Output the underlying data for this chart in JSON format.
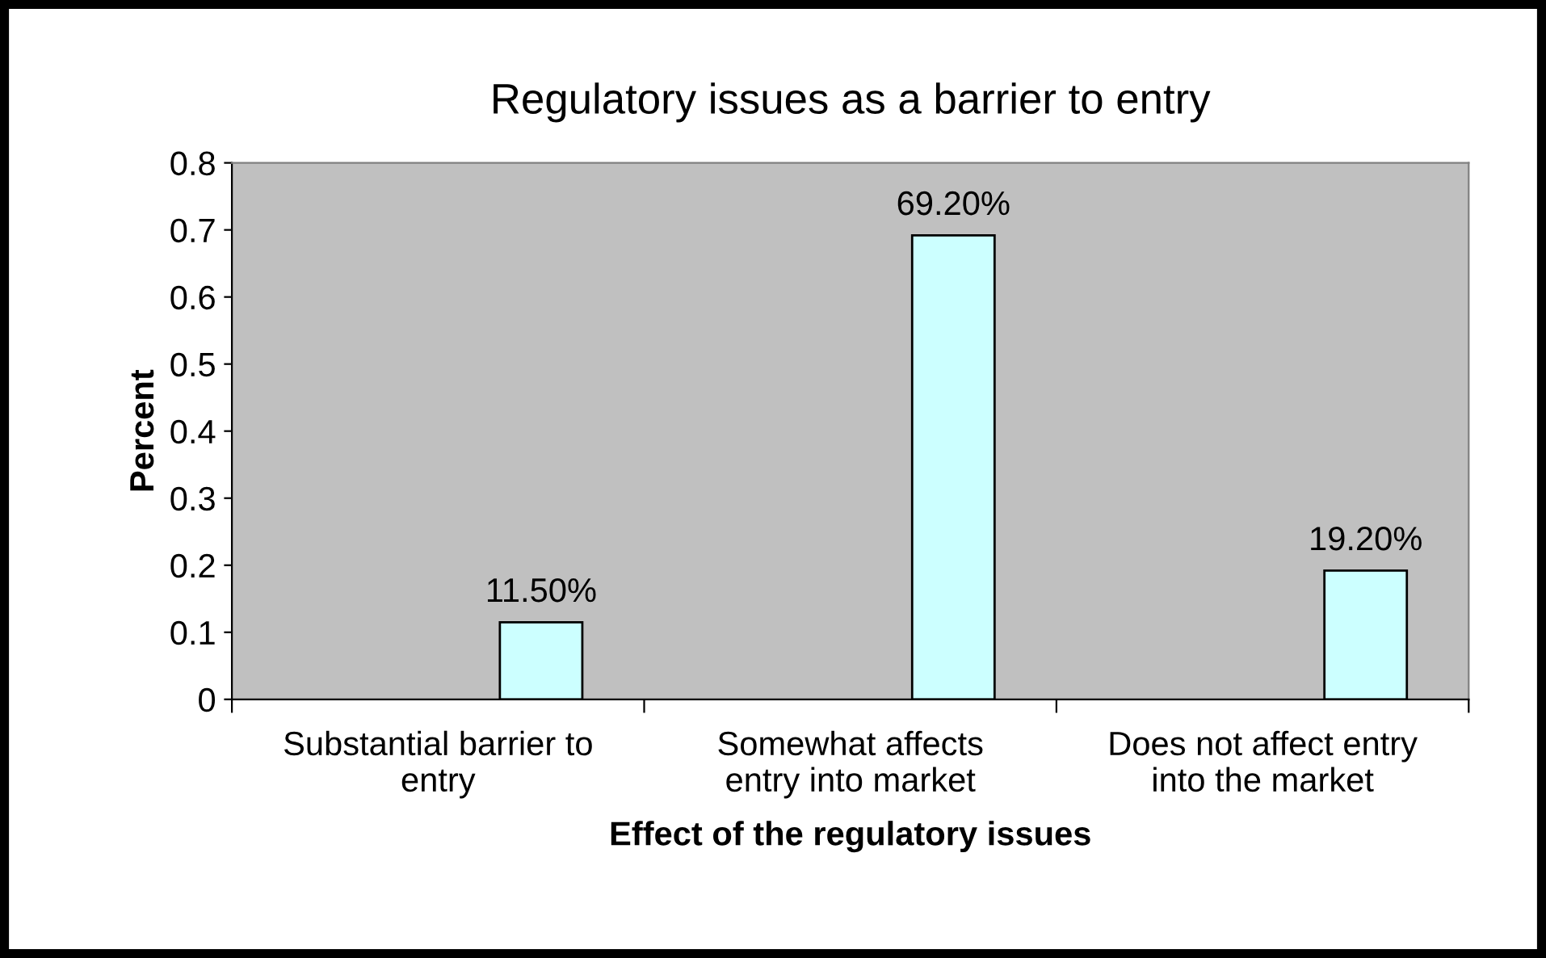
{
  "chart_data": {
    "type": "bar",
    "title": "Regulatory issues as a barrier to entry",
    "xlabel": "Effect of the regulatory issues",
    "ylabel": "Percent",
    "categories": [
      "Substantial barrier to\nentry",
      "Somewhat affects\nentry into market",
      "Does not affect entry\ninto the market"
    ],
    "values": [
      0.115,
      0.692,
      0.192
    ],
    "value_labels": [
      "11.50%",
      "69.20%",
      "19.20%"
    ],
    "color": "#ccffff",
    "ylim": [
      0,
      0.8
    ],
    "yticks": [
      0,
      0.1,
      0.2,
      0.3,
      0.4,
      0.5,
      0.6,
      0.7,
      0.8
    ],
    "grid": false
  }
}
